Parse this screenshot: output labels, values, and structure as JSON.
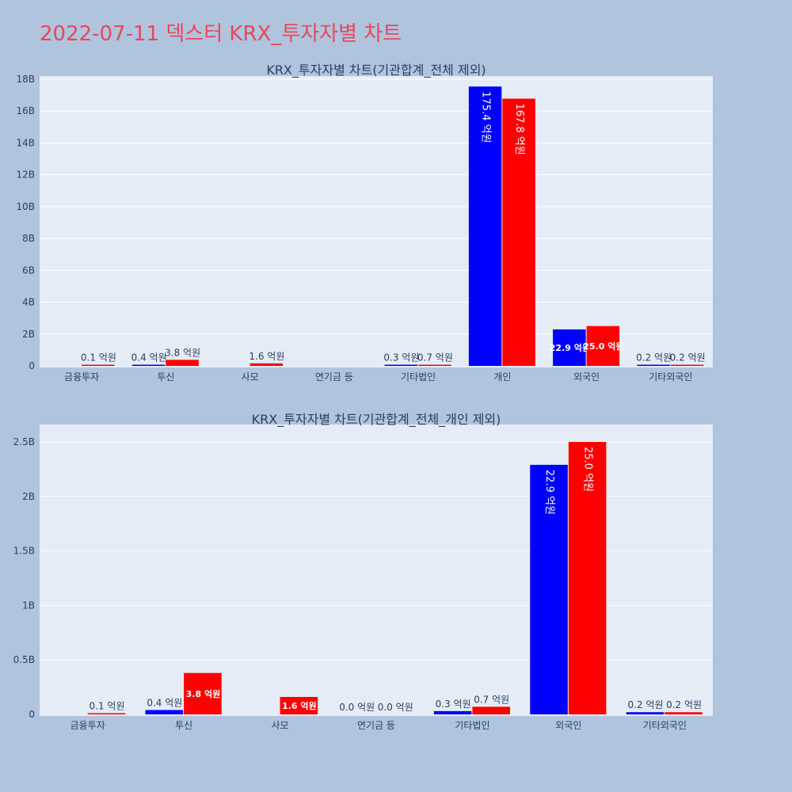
{
  "page": {
    "title": "2022-07-11 덱스터 KRX_투자자별 차트"
  },
  "colors": {
    "buy": "#0000ff",
    "sell": "#ff0000",
    "plot_bg": "#e5ecf6",
    "page_bg": "#b0c4de",
    "title": "#e8485a"
  },
  "chart_data": [
    {
      "type": "bar",
      "title": "KRX_투자자별 차트(기관합계_전체 제외)",
      "categories": [
        "금융투자",
        "투신",
        "사모",
        "연기금 등",
        "기타법인",
        "개인",
        "외국인",
        "기타외국인"
      ],
      "series": [
        {
          "values": [
            0,
            0.04,
            0,
            0,
            0.03,
            17.54,
            2.29,
            0.02
          ],
          "labels": [
            "",
            "0.4 억원",
            "",
            "",
            "0.3 억원",
            "175.4 억원",
            "22.9 억원",
            "0.2 억원"
          ]
        },
        {
          "values": [
            0.01,
            0.38,
            0.16,
            0,
            0.07,
            16.78,
            2.5,
            0.02
          ],
          "labels": [
            "0.1 억원",
            "3.8 억원",
            "1.6 억원",
            "",
            "0.7 억원",
            "167.8 억원",
            "25.0 억원",
            "0.2 억원"
          ]
        }
      ],
      "ylim": [
        0,
        18.2
      ],
      "yticks": [
        0,
        2,
        4,
        6,
        8,
        10,
        12,
        14,
        16,
        18
      ],
      "yticklabels": [
        "0",
        "2B",
        "4B",
        "6B",
        "8B",
        "10B",
        "12B",
        "14B",
        "16B",
        "18B"
      ],
      "grid": true,
      "barmode": "group"
    },
    {
      "type": "bar",
      "title": "KRX_투자자별 차트(기관합계_전체_개인 제외)",
      "categories": [
        "금융투자",
        "투신",
        "사모",
        "연기금 등",
        "기타법인",
        "외국인",
        "기타외국인"
      ],
      "series": [
        {
          "values": [
            0,
            0.04,
            0,
            0,
            0.03,
            2.29,
            0.02
          ],
          "labels": [
            "",
            "0.4 억원",
            "",
            "0.0 억원",
            "0.3 억원",
            "22.9 억원",
            "0.2 억원"
          ]
        },
        {
          "values": [
            0.01,
            0.38,
            0.16,
            0,
            0.07,
            2.5,
            0.02
          ],
          "labels": [
            "0.1 억원",
            "3.8 억원",
            "1.6 억원",
            "0.0 억원",
            "0.7 억원",
            "25.0 억원",
            "0.2 억원"
          ]
        }
      ],
      "ylim": [
        0,
        2.66
      ],
      "yticks": [
        0,
        0.5,
        1,
        1.5,
        2,
        2.5
      ],
      "yticklabels": [
        "0",
        "0.5B",
        "1B",
        "1.5B",
        "2B",
        "2.5B"
      ],
      "grid": true,
      "barmode": "group"
    }
  ]
}
